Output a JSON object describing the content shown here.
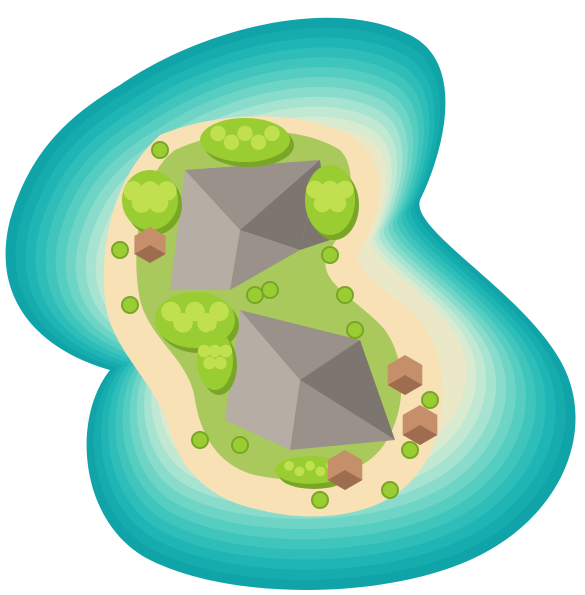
{
  "scene": {
    "name": "tropical-island-map-tile",
    "features": [
      "ocean-shallows",
      "sand-beach",
      "grass-land",
      "mountain-north",
      "mountain-south",
      "trees",
      "boulders",
      "shrubs"
    ]
  },
  "colors": {
    "water_rings": [
      "#10a4a8",
      "#16acae",
      "#1fb5b4",
      "#2ebdb8",
      "#40c5bd",
      "#56cdc1",
      "#6ed5c6",
      "#89dccb",
      "#a6e3d0",
      "#c1e8d2",
      "#d8ebd0",
      "#ebe8c8"
    ],
    "sand": "#f7e1b5",
    "grass": "#a9c95c",
    "grass_dark": "#8fb24a",
    "mountain_light": "#b6ada4",
    "mountain_mid": "#9a918a",
    "mountain_dark": "#7d7570",
    "tree": "#9acd32",
    "tree_light": "#c0e050",
    "tree_shadow": "#7aa628",
    "rock": "#c58f6a",
    "rock_dark": "#9e6d4f",
    "shadow": "rgba(80,90,60,0.25)"
  },
  "objects": {
    "rocks": 4,
    "tree_clumps": 6,
    "shrubs": 14
  }
}
